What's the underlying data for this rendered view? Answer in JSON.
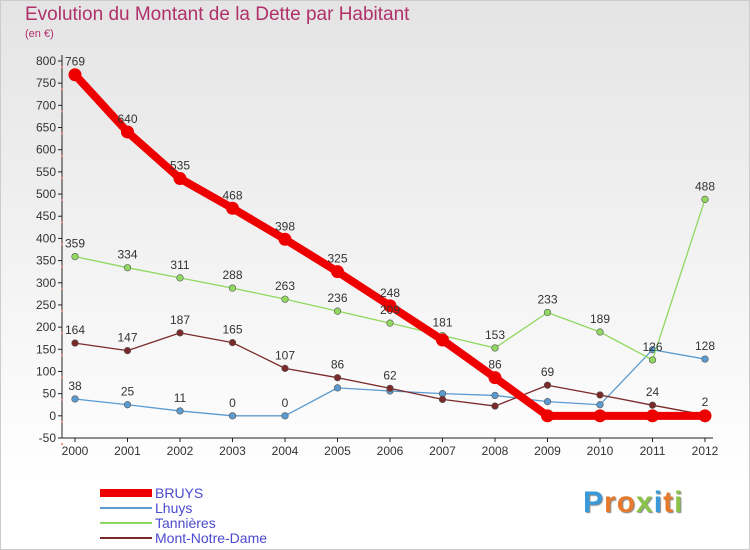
{
  "chart_data": {
    "type": "line",
    "title": "Evolution du Montant de la Dette par Habitant",
    "subtitle": "(en €)",
    "x": [
      "2000",
      "2001",
      "2002",
      "2003",
      "2004",
      "2005",
      "2006",
      "2007",
      "2008",
      "2009",
      "2010",
      "2011",
      "2012"
    ],
    "ylim": [
      -50,
      800
    ],
    "yticks": [
      -50,
      0,
      50,
      100,
      150,
      200,
      250,
      300,
      350,
      400,
      450,
      500,
      550,
      600,
      650,
      700,
      750,
      800
    ],
    "grid": false,
    "legend_position": "bottom-left",
    "series": [
      {
        "name": "BRUYS",
        "color": "#ee0000",
        "values": [
          769,
          640,
          535,
          468,
          398,
          325,
          248,
          171,
          86,
          0,
          0,
          0,
          0
        ],
        "labels": [
          "769",
          "640",
          "535",
          "468",
          "398",
          "325",
          "248",
          "",
          "86",
          "",
          "",
          "",
          ""
        ]
      },
      {
        "name": "Lhuys",
        "color": "#5b9bd0",
        "values": [
          38,
          25,
          11,
          0,
          0,
          63,
          56,
          50,
          46,
          32,
          25,
          149,
          128
        ],
        "labels": [
          "38",
          "25",
          "11",
          "0",
          "0",
          "",
          "",
          "",
          "",
          "",
          "",
          "",
          "128"
        ]
      },
      {
        "name": "Tannières",
        "color": "#90d860",
        "values": [
          359,
          334,
          311,
          288,
          263,
          236,
          209,
          181,
          153,
          233,
          189,
          126,
          488
        ],
        "labels": [
          "359",
          "334",
          "311",
          "288",
          "263",
          "236",
          "209",
          "181",
          "153",
          "233",
          "189",
          "126",
          "488"
        ]
      },
      {
        "name": "Mont-Notre-Dame",
        "color": "#7b2a2a",
        "values": [
          164,
          147,
          187,
          165,
          107,
          86,
          62,
          37,
          22,
          69,
          47,
          24,
          2
        ],
        "labels": [
          "164",
          "147",
          "187",
          "165",
          "107",
          "86",
          "62",
          "",
          "",
          "69",
          "",
          "24",
          "2"
        ]
      }
    ]
  },
  "logo_text": "Proxiti"
}
